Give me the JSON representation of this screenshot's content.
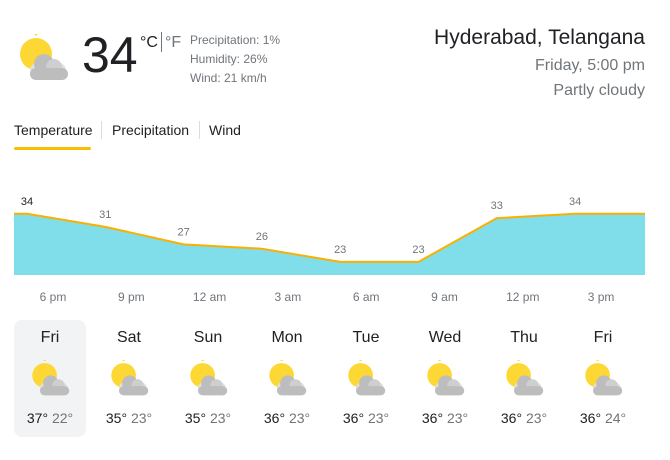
{
  "current": {
    "temperature": "34",
    "unit_c": "°C",
    "unit_f": "°F",
    "precipitation": "Precipitation: 1%",
    "humidity": "Humidity: 26%",
    "wind": "Wind: 21 km/h"
  },
  "location": {
    "place": "Hyderabad, Telangana",
    "time": "Friday, 5:00 pm",
    "condition": "Partly cloudy"
  },
  "tabs": [
    "Temperature",
    "Precipitation",
    "Wind"
  ],
  "chart_data": {
    "type": "area",
    "categories": [
      "6 pm",
      "9 pm",
      "12 am",
      "3 am",
      "6 am",
      "9 am",
      "12 pm",
      "3 pm"
    ],
    "values": [
      34,
      31,
      27,
      26,
      23,
      23,
      33,
      34
    ],
    "ylim": [
      20,
      36
    ],
    "color": "#f9b000",
    "fill": "#80deea"
  },
  "days": [
    {
      "day": "Fri",
      "high": "37°",
      "low": "22°"
    },
    {
      "day": "Sat",
      "high": "35°",
      "low": "23°"
    },
    {
      "day": "Sun",
      "high": "35°",
      "low": "23°"
    },
    {
      "day": "Mon",
      "high": "36°",
      "low": "23°"
    },
    {
      "day": "Tue",
      "high": "36°",
      "low": "23°"
    },
    {
      "day": "Wed",
      "high": "36°",
      "low": "23°"
    },
    {
      "day": "Thu",
      "high": "36°",
      "low": "23°"
    },
    {
      "day": "Fri",
      "high": "36°",
      "low": "24°"
    }
  ]
}
